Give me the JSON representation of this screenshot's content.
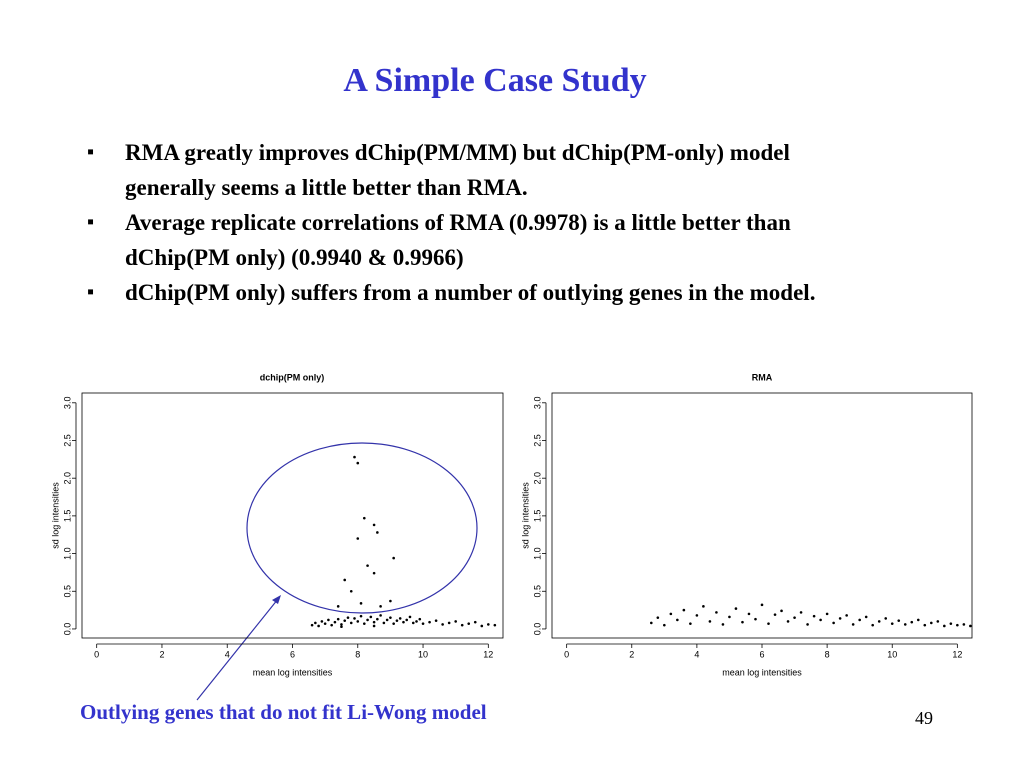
{
  "title": "A Simple Case Study",
  "bullets": [
    "RMA greatly improves dChip(PM/MM) but dChip(PM-only) model generally seems a little better than RMA.",
    "Average replicate correlations of RMA (0.9978) is a little better than dChip(PM only) (0.9940 & 0.9966)",
    "dChip(PM only) suffers from a number of outlying genes in the model."
  ],
  "annotation": "Outlying genes that do not fit Li-Wong model",
  "page_number": "49",
  "chart_data": [
    {
      "type": "scatter",
      "title": "dchip(PM only)",
      "x_label": "mean log intensities",
      "y_label": "sd log intensities",
      "color": "#000000",
      "xlim": [
        -0.45,
        12.45
      ],
      "ylim": [
        -0.12,
        3.13
      ],
      "xticks": [
        0,
        2,
        4,
        6,
        8,
        10,
        12
      ],
      "yticks": [
        {
          "value": 0,
          "label": "0.0"
        },
        0.5,
        {
          "value": 1,
          "label": "1.0"
        },
        1.5,
        {
          "value": 2,
          "label": "2.0"
        },
        2.5,
        {
          "value": 3,
          "label": "3.0"
        }
      ],
      "x": [
        6.6,
        6.7,
        6.8,
        6.9,
        7.0,
        7.1,
        7.2,
        7.3,
        7.4,
        7.5,
        7.6,
        7.7,
        7.8,
        7.9,
        8.0,
        8.1,
        8.2,
        8.3,
        8.4,
        8.5,
        8.6,
        8.7,
        8.8,
        8.9,
        9.0,
        9.1,
        9.2,
        9.3,
        9.4,
        9.5,
        9.6,
        9.7,
        9.8,
        9.9,
        10.0,
        10.2,
        10.4,
        10.6,
        10.8,
        11.0,
        11.2,
        11.4,
        11.6,
        11.8,
        12.0,
        12.2,
        7.5,
        8.5,
        7.9,
        8.0,
        8.2,
        8.5,
        8.6,
        8.0,
        8.3,
        9.1,
        7.6,
        8.5,
        7.8,
        8.1,
        9.0,
        8.7,
        7.4
      ],
      "y": [
        0.05,
        0.08,
        0.04,
        0.1,
        0.07,
        0.12,
        0.05,
        0.09,
        0.13,
        0.06,
        0.11,
        0.15,
        0.08,
        0.14,
        0.1,
        0.17,
        0.07,
        0.12,
        0.16,
        0.09,
        0.13,
        0.18,
        0.08,
        0.12,
        0.15,
        0.07,
        0.11,
        0.14,
        0.09,
        0.12,
        0.16,
        0.08,
        0.1,
        0.13,
        0.07,
        0.09,
        0.11,
        0.06,
        0.08,
        0.1,
        0.05,
        0.07,
        0.09,
        0.04,
        0.06,
        0.05,
        0.03,
        0.04,
        2.28,
        2.2,
        1.47,
        1.38,
        1.28,
        1.2,
        0.84,
        0.94,
        0.65,
        0.74,
        0.5,
        0.34,
        0.37,
        0.3,
        0.3
      ]
    },
    {
      "type": "scatter",
      "title": "RMA",
      "x_label": "mean log intensities",
      "y_label": "sd log intensities",
      "color": "#000000",
      "xlim": [
        -0.45,
        12.45
      ],
      "ylim": [
        -0.12,
        3.13
      ],
      "xticks": [
        0,
        2,
        4,
        6,
        8,
        10,
        12
      ],
      "yticks": [
        {
          "value": 0,
          "label": "0.0"
        },
        0.5,
        {
          "value": 1,
          "label": "1.0"
        },
        1.5,
        {
          "value": 2,
          "label": "2.0"
        },
        2.5,
        {
          "value": 3,
          "label": "3.0"
        }
      ],
      "x": [
        2.6,
        2.8,
        3.0,
        3.2,
        3.4,
        3.6,
        3.8,
        4.0,
        4.2,
        4.4,
        4.6,
        4.8,
        5.0,
        5.2,
        5.4,
        5.6,
        5.8,
        6.0,
        6.2,
        6.4,
        6.6,
        6.8,
        7.0,
        7.2,
        7.4,
        7.6,
        7.8,
        8.0,
        8.2,
        8.4,
        8.6,
        8.8,
        9.0,
        9.2,
        9.4,
        9.6,
        9.8,
        10.0,
        10.2,
        10.4,
        10.6,
        10.8,
        11.0,
        11.2,
        11.4,
        11.6,
        11.8,
        12.0,
        12.2,
        12.4
      ],
      "y": [
        0.08,
        0.15,
        0.05,
        0.2,
        0.12,
        0.25,
        0.07,
        0.18,
        0.3,
        0.1,
        0.22,
        0.06,
        0.16,
        0.27,
        0.09,
        0.2,
        0.13,
        0.32,
        0.07,
        0.19,
        0.24,
        0.1,
        0.15,
        0.22,
        0.06,
        0.17,
        0.12,
        0.2,
        0.08,
        0.14,
        0.18,
        0.06,
        0.12,
        0.16,
        0.05,
        0.1,
        0.14,
        0.07,
        0.11,
        0.06,
        0.09,
        0.12,
        0.05,
        0.08,
        0.1,
        0.04,
        0.07,
        0.05,
        0.06,
        0.04
      ]
    }
  ]
}
